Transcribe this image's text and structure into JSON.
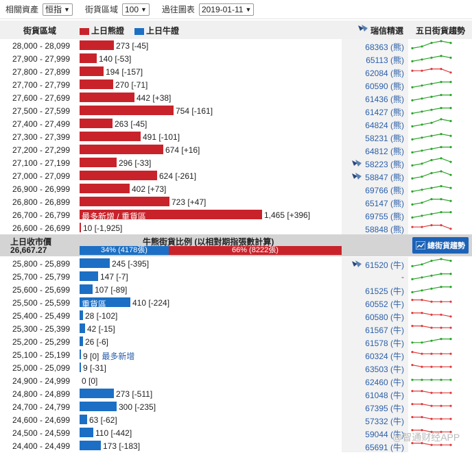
{
  "toolbar": {
    "asset_label": "相關資產",
    "asset_value": "恒指",
    "range_label": "街貨區域",
    "range_value": "100",
    "chart_label": "過往圖表",
    "chart_value": "2019-01-11"
  },
  "header": {
    "range_col": "街貨區域",
    "bear_legend": "上日熊證",
    "bull_legend": "上日牛證",
    "strike_col": "瑞信精選",
    "trend_col": "五日街貨趨勢"
  },
  "colors": {
    "bear": "#c8232b",
    "bull": "#1c6fc4",
    "up": "#2aa52a",
    "down": "#e03b3b",
    "strike": "#2a5ea8"
  },
  "mid": {
    "prev_close_label": "上日收市價",
    "prev_close_value": "26,667.27",
    "ratio_title": "牛熊街貨比例 (以相對期指張數計算)",
    "bull_pct": 34,
    "bull_text": "34% (4178張)",
    "bear_pct": 66,
    "bear_text": "66% (8222張)",
    "trend_button": "總街貨趨勢"
  },
  "watermark": "@智通财经APP",
  "chart_data": {
    "type": "bar",
    "bear_rows": [
      {
        "range": "28,000 - 28,099",
        "value": 273,
        "change": "[-45]",
        "code": "68363 (熊)",
        "trend": [
          1,
          2,
          4,
          5,
          4
        ],
        "up": true
      },
      {
        "range": "27,900 - 27,999",
        "value": 140,
        "change": "[-53]",
        "code": "65113 (熊)",
        "trend": [
          1,
          2,
          3,
          4,
          3
        ],
        "up": true
      },
      {
        "range": "27,800 - 27,899",
        "value": 194,
        "change": "[-157]",
        "code": "62084 (熊)",
        "trend": [
          3,
          3,
          4,
          4,
          2
        ],
        "up": false
      },
      {
        "range": "27,700 - 27,799",
        "value": 270,
        "change": "[-71]",
        "code": "60590 (熊)",
        "trend": [
          1,
          2,
          3,
          4,
          4
        ],
        "up": true
      },
      {
        "range": "27,600 - 27,699",
        "value": 442,
        "change": "[+38]",
        "code": "61436 (熊)",
        "trend": [
          1,
          2,
          3,
          4,
          4
        ],
        "up": true
      },
      {
        "range": "27,500 - 27,599",
        "value": 754,
        "change": "[-161]",
        "code": "61427 (熊)",
        "trend": [
          1,
          2,
          3,
          4,
          4
        ],
        "up": true
      },
      {
        "range": "27,400 - 27,499",
        "value": 263,
        "change": "[-45]",
        "code": "64824 (熊)",
        "trend": [
          1,
          2,
          3,
          5,
          4
        ],
        "up": true
      },
      {
        "range": "27,300 - 27,399",
        "value": 491,
        "change": "[-101]",
        "code": "58231 (熊)",
        "trend": [
          1,
          2,
          3,
          4,
          3
        ],
        "up": true
      },
      {
        "range": "27,200 - 27,299",
        "value": 674,
        "change": "[+16]",
        "code": "64812 (熊)",
        "trend": [
          1,
          2,
          3,
          4,
          4
        ],
        "up": true
      },
      {
        "range": "27,100 - 27,199",
        "value": 296,
        "change": "[-33]",
        "code": "58223 (熊)",
        "trend": [
          1,
          2,
          4,
          5,
          3
        ],
        "up": true,
        "icon": true
      },
      {
        "range": "27,000 - 27,099",
        "value": 624,
        "change": "[-261]",
        "code": "58847 (熊)",
        "trend": [
          1,
          2,
          4,
          5,
          3
        ],
        "up": true,
        "icon": true
      },
      {
        "range": "26,900 - 26,999",
        "value": 402,
        "change": "[+73]",
        "code": "69766 (熊)",
        "trend": [
          1,
          2,
          3,
          4,
          3
        ],
        "up": true
      },
      {
        "range": "26,800 - 26,899",
        "value": 723,
        "change": "[+47]",
        "code": "65147 (熊)",
        "trend": [
          1,
          2,
          4,
          4,
          3
        ],
        "up": true
      },
      {
        "range": "26,700 - 26,799",
        "value": 1465,
        "change": "[+396]",
        "code": "69755 (熊)",
        "trend": [
          1,
          2,
          3,
          4,
          4
        ],
        "up": true,
        "note": "最多新增 / 重貨區"
      },
      {
        "range": "26,600 - 26,699",
        "value": 10,
        "change": "[-1,925]",
        "code": "58848 (熊)",
        "trend": [
          3,
          3,
          4,
          4,
          2
        ],
        "up": false
      }
    ],
    "bull_rows": [
      {
        "range": "25,800 - 25,899",
        "value": 245,
        "change": "[-395]",
        "code": "61520 (牛)",
        "trend": [
          1,
          2,
          4,
          5,
          4
        ],
        "up": true,
        "icon": true
      },
      {
        "range": "25,700 - 25,799",
        "value": 147,
        "change": "[-7]",
        "code": "-",
        "trend": [
          1,
          2,
          3,
          4,
          4
        ],
        "up": true
      },
      {
        "range": "25,600 - 25,699",
        "value": 107,
        "change": "[-89]",
        "code": "61525 (牛)",
        "trend": [
          1,
          2,
          3,
          4,
          4
        ],
        "up": true
      },
      {
        "range": "25,500 - 25,599",
        "value": 410,
        "change": "[-224]",
        "code": "60552 (牛)",
        "trend": [
          4,
          4,
          3,
          3,
          3
        ],
        "up": false,
        "note": "重貨區"
      },
      {
        "range": "25,400 - 25,499",
        "value": 28,
        "change": "[-102]",
        "code": "60580 (牛)",
        "trend": [
          4,
          4,
          3,
          3,
          2
        ],
        "up": false
      },
      {
        "range": "25,300 - 25,399",
        "value": 42,
        "change": "[-15]",
        "code": "61567 (牛)",
        "trend": [
          4,
          4,
          3,
          3,
          3
        ],
        "up": false
      },
      {
        "range": "25,200 - 25,299",
        "value": 26,
        "change": "[-6]",
        "code": "61578 (牛)",
        "trend": [
          2,
          2,
          3,
          4,
          4
        ],
        "up": true
      },
      {
        "range": "25,100 - 25,199",
        "value": 9,
        "change": "[0]",
        "code": "60324 (牛)",
        "trend": [
          4,
          3,
          3,
          3,
          3
        ],
        "up": false,
        "note_after": "最多新增"
      },
      {
        "range": "25,000 - 25,099",
        "value": 9,
        "change": "[-31]",
        "code": "63503 (牛)",
        "trend": [
          4,
          3,
          3,
          3,
          3
        ],
        "up": false
      },
      {
        "range": "24,900 - 24,999",
        "value": 0,
        "change": "[0]",
        "code": "62460 (牛)",
        "trend": [
          3,
          3,
          3,
          3,
          3
        ],
        "up": true
      },
      {
        "range": "24,800 - 24,899",
        "value": 273,
        "change": "[-511]",
        "code": "61048 (牛)",
        "trend": [
          4,
          4,
          3,
          3,
          3
        ],
        "up": false
      },
      {
        "range": "24,700 - 24,799",
        "value": 300,
        "change": "[-235]",
        "code": "67395 (牛)",
        "trend": [
          4,
          4,
          3,
          3,
          3
        ],
        "up": false
      },
      {
        "range": "24,600 - 24,699",
        "value": 63,
        "change": "[-62]",
        "code": "57332 (牛)",
        "trend": [
          4,
          4,
          3,
          3,
          3
        ],
        "up": false
      },
      {
        "range": "24,500 - 24,599",
        "value": 110,
        "change": "[-442]",
        "code": "59044 (牛)",
        "trend": [
          4,
          4,
          3,
          3,
          3
        ],
        "up": false
      },
      {
        "range": "24,400 - 24,499",
        "value": 173,
        "change": "[-183]",
        "code": "65691 (牛)",
        "trend": [
          4,
          4,
          3,
          3,
          3
        ],
        "up": false
      }
    ]
  }
}
